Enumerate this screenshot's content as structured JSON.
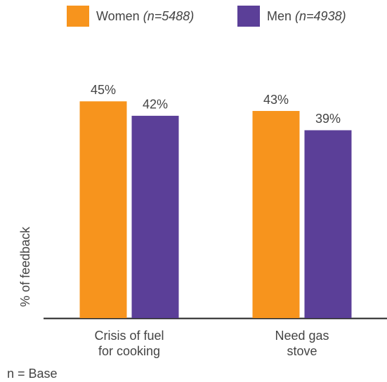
{
  "chart_data": {
    "type": "bar",
    "categories": [
      "Crisis of fuel for cooking",
      "Need gas stove"
    ],
    "series": [
      {
        "name": "Women",
        "base": "(n=5488)",
        "color": "#f7941d",
        "values": [
          45,
          43
        ],
        "value_labels": [
          "45%",
          "43%"
        ]
      },
      {
        "name": "Men",
        "base": "(n=4938)",
        "color": "#5b3f98",
        "values": [
          42,
          39
        ],
        "value_labels": [
          "42%",
          "39%"
        ]
      }
    ],
    "ylabel": "% of feedback",
    "ylim": [
      0,
      50
    ],
    "footnote": "n = Base"
  }
}
